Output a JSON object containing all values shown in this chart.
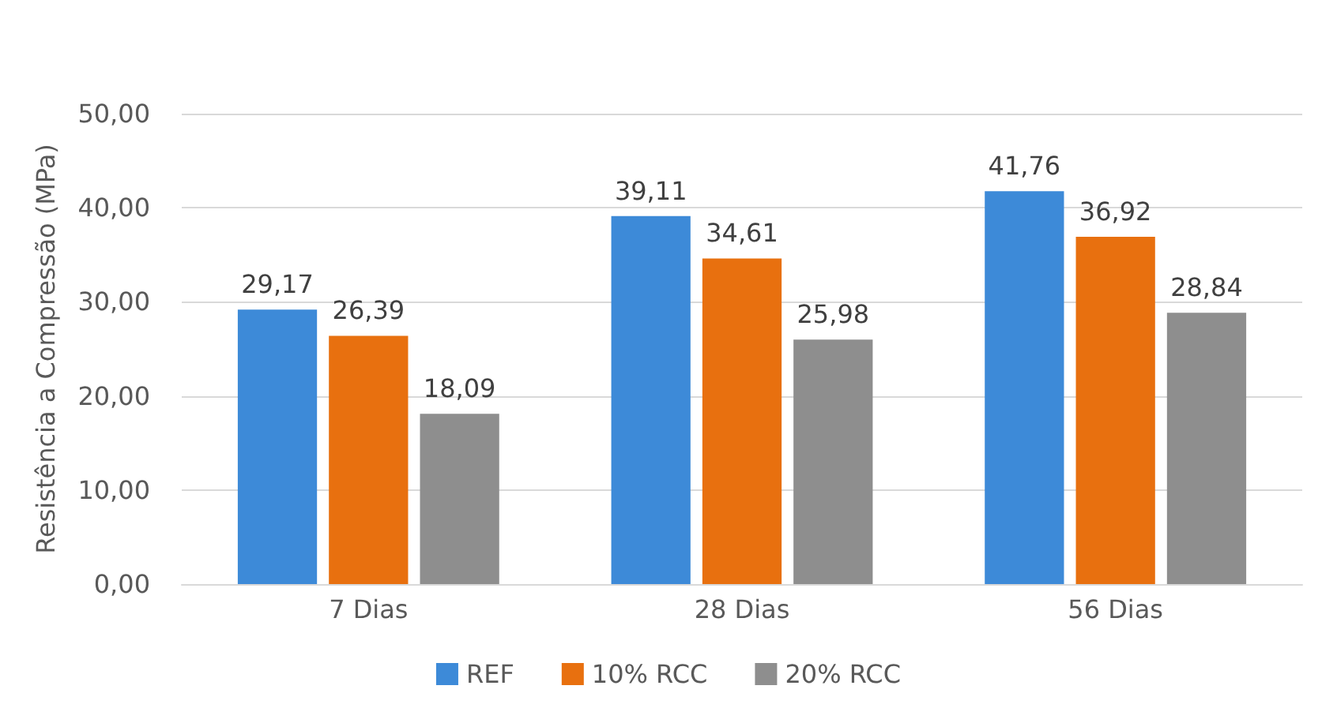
{
  "chart_data": {
    "type": "bar",
    "ylabel": "Resistência a Compressão (MPa)",
    "categories": [
      "7 Dias",
      "28 Dias",
      "56 Dias"
    ],
    "series": [
      {
        "name": "REF",
        "color": "#3d8ad8",
        "values": [
          29.17,
          39.11,
          41.76
        ],
        "value_labels": [
          "29,17",
          "39,11",
          "41,76"
        ]
      },
      {
        "name": "10% RCC",
        "color": "#e8700f",
        "values": [
          26.39,
          34.61,
          36.92
        ],
        "value_labels": [
          "26,39",
          "34,61",
          "36,92"
        ]
      },
      {
        "name": "20% RCC",
        "color": "#8e8e8e",
        "values": [
          18.09,
          25.98,
          28.84
        ],
        "value_labels": [
          "18,09",
          "25,98",
          "28,84"
        ]
      }
    ],
    "ylim": [
      0,
      50
    ],
    "yticks": [
      {
        "value": 0,
        "label": "0,00"
      },
      {
        "value": 10,
        "label": "10,00"
      },
      {
        "value": 20,
        "label": "20,00"
      },
      {
        "value": 30,
        "label": "30,00"
      },
      {
        "value": 40,
        "label": "40,00"
      },
      {
        "value": 50,
        "label": "50,00"
      }
    ],
    "grid": "y",
    "legend": "bottom"
  }
}
